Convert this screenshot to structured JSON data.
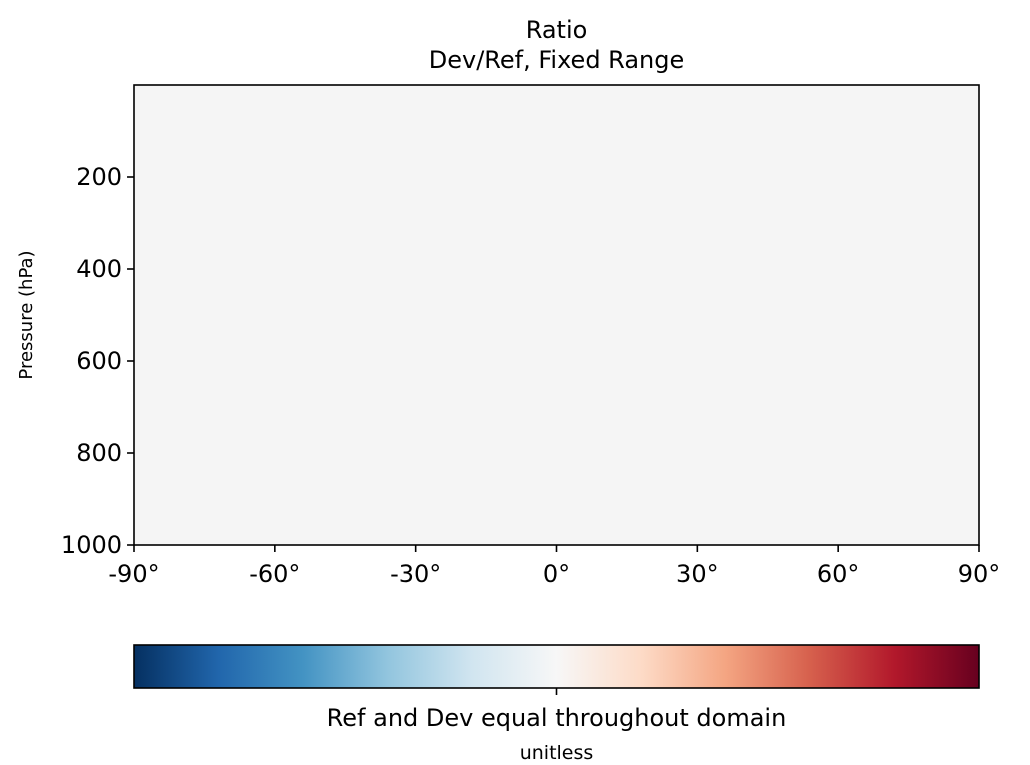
{
  "chart_data": {
    "type": "heatmap",
    "title": "Ratio",
    "subtitle": "Dev/Ref, Fixed Range",
    "ylabel": "Pressure (hPa)",
    "xlabel": "",
    "x_ticks": [
      -90,
      -60,
      -30,
      0,
      30,
      60,
      90
    ],
    "x_tick_labels": [
      "-90°",
      "-60°",
      "-30°",
      "0°",
      "30°",
      "60°",
      "90°"
    ],
    "xlim": [
      -90,
      90
    ],
    "y_ticks": [
      200,
      400,
      600,
      800,
      1000
    ],
    "y_tick_labels": [
      "200",
      "400",
      "600",
      "800",
      "1000"
    ],
    "ylim": [
      1000,
      0
    ],
    "y_inverted": true,
    "field_value": 1.0,
    "field_color": "#f5f5f5",
    "grid": false,
    "colorbar": {
      "orientation": "horizontal",
      "colormap": "RdBu_r",
      "tick_label": "Ref and Dev equal throughout domain",
      "label": "unitless",
      "stops": [
        "#053061",
        "#2166ac",
        "#4393c3",
        "#92c5de",
        "#d1e5f0",
        "#f7f7f7",
        "#fddbc7",
        "#f4a582",
        "#d6604d",
        "#b2182b",
        "#67001f"
      ]
    }
  }
}
